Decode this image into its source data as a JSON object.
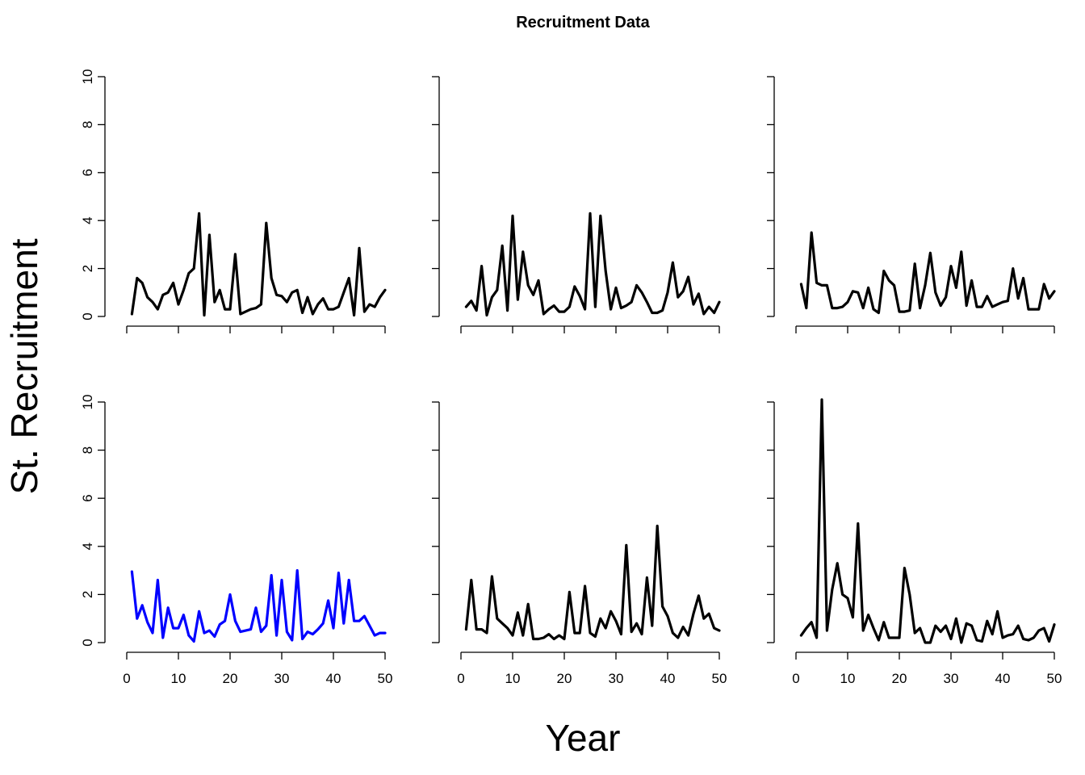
{
  "chart_data": {
    "type": "line",
    "title": "Recruitment Data",
    "xlabel": "Year",
    "ylabel": "St. Recruitment",
    "xlim": [
      0,
      50
    ],
    "ylim": [
      0,
      10
    ],
    "x_ticks": [
      "0",
      "10",
      "20",
      "30",
      "40",
      "50"
    ],
    "y_ticks": [
      "0",
      "2",
      "4",
      "6",
      "8",
      "10"
    ],
    "layout": {
      "rows": 2,
      "cols": 3
    },
    "grid": false,
    "x": [
      1,
      2,
      3,
      4,
      5,
      6,
      7,
      8,
      9,
      10,
      11,
      12,
      13,
      14,
      15,
      16,
      17,
      18,
      19,
      20,
      21,
      22,
      23,
      24,
      25,
      26,
      27,
      28,
      29,
      30,
      31,
      32,
      33,
      34,
      35,
      36,
      37,
      38,
      39,
      40,
      41,
      42,
      43,
      44,
      45,
      46,
      47,
      48,
      49,
      50
    ],
    "panels": [
      {
        "color": "#000000",
        "values": [
          0.1,
          1.6,
          1.4,
          0.8,
          0.6,
          0.3,
          0.9,
          1.0,
          1.4,
          0.5,
          1.1,
          1.8,
          2.0,
          4.3,
          0.05,
          3.4,
          0.6,
          1.1,
          0.3,
          0.3,
          2.6,
          0.1,
          0.2,
          0.3,
          0.35,
          0.5,
          3.9,
          1.6,
          0.9,
          0.85,
          0.6,
          1.0,
          1.1,
          0.15,
          0.8,
          0.1,
          0.5,
          0.75,
          0.3,
          0.3,
          0.4,
          1.0,
          1.6,
          0.05,
          2.85,
          0.2,
          0.5,
          0.4,
          0.8,
          1.1
        ]
      },
      {
        "color": "#000000",
        "values": [
          0.4,
          0.65,
          0.25,
          2.1,
          0.05,
          0.8,
          1.1,
          2.95,
          0.25,
          4.2,
          0.7,
          2.7,
          1.3,
          0.9,
          1.5,
          0.1,
          0.3,
          0.45,
          0.2,
          0.2,
          0.4,
          1.25,
          0.85,
          0.3,
          4.3,
          0.4,
          4.2,
          1.9,
          0.3,
          1.2,
          0.35,
          0.45,
          0.6,
          1.3,
          1.0,
          0.6,
          0.15,
          0.15,
          0.25,
          1.0,
          2.25,
          0.8,
          1.05,
          1.65,
          0.5,
          0.95,
          0.1,
          0.4,
          0.15,
          0.6
        ]
      },
      {
        "color": "#000000",
        "values": [
          1.35,
          0.35,
          3.5,
          1.4,
          1.3,
          1.3,
          0.35,
          0.35,
          0.4,
          0.6,
          1.05,
          1.0,
          0.35,
          1.2,
          0.3,
          0.15,
          1.9,
          1.5,
          1.3,
          0.2,
          0.2,
          0.25,
          2.2,
          0.35,
          1.3,
          2.65,
          1.0,
          0.45,
          0.8,
          2.1,
          1.2,
          2.7,
          0.45,
          1.5,
          0.4,
          0.4,
          0.85,
          0.4,
          0.5,
          0.6,
          0.65,
          2.0,
          0.75,
          1.6,
          0.3,
          0.3,
          0.3,
          1.35,
          0.75,
          1.05
        ]
      },
      {
        "color": "#0000ff",
        "values": [
          2.95,
          1.0,
          1.55,
          0.85,
          0.4,
          2.6,
          0.2,
          1.45,
          0.6,
          0.6,
          1.15,
          0.3,
          0.05,
          1.3,
          0.4,
          0.5,
          0.25,
          0.75,
          0.9,
          2.0,
          0.9,
          0.45,
          0.5,
          0.55,
          1.45,
          0.45,
          0.7,
          2.8,
          0.3,
          2.6,
          0.45,
          0.1,
          3.0,
          0.15,
          0.45,
          0.35,
          0.55,
          0.8,
          1.75,
          0.6,
          2.9,
          0.8,
          2.6,
          0.9,
          0.9,
          1.1,
          0.7,
          0.3,
          0.4,
          0.4
        ]
      },
      {
        "color": "#000000",
        "values": [
          0.55,
          2.6,
          0.55,
          0.55,
          0.4,
          2.75,
          1.0,
          0.8,
          0.6,
          0.3,
          1.25,
          0.3,
          1.6,
          0.15,
          0.15,
          0.2,
          0.35,
          0.15,
          0.3,
          0.15,
          2.1,
          0.4,
          0.4,
          2.35,
          0.4,
          0.25,
          1.0,
          0.6,
          1.3,
          0.9,
          0.35,
          4.05,
          0.45,
          0.8,
          0.35,
          2.7,
          0.7,
          4.85,
          1.5,
          1.1,
          0.4,
          0.2,
          0.65,
          0.3,
          1.2,
          1.95,
          1.0,
          1.2,
          0.6,
          0.5
        ]
      },
      {
        "color": "#000000",
        "values": [
          0.3,
          0.6,
          0.85,
          0.2,
          10.1,
          0.5,
          2.2,
          3.3,
          2.0,
          1.85,
          1.05,
          4.95,
          0.5,
          1.15,
          0.6,
          0.1,
          0.85,
          0.2,
          0.2,
          0.2,
          3.1,
          2.0,
          0.4,
          0.6,
          0.0,
          0.0,
          0.7,
          0.45,
          0.7,
          0.15,
          1.0,
          0.0,
          0.8,
          0.7,
          0.1,
          0.05,
          0.9,
          0.35,
          1.3,
          0.2,
          0.3,
          0.35,
          0.7,
          0.15,
          0.1,
          0.2,
          0.5,
          0.6,
          0.05,
          0.75
        ]
      }
    ]
  }
}
